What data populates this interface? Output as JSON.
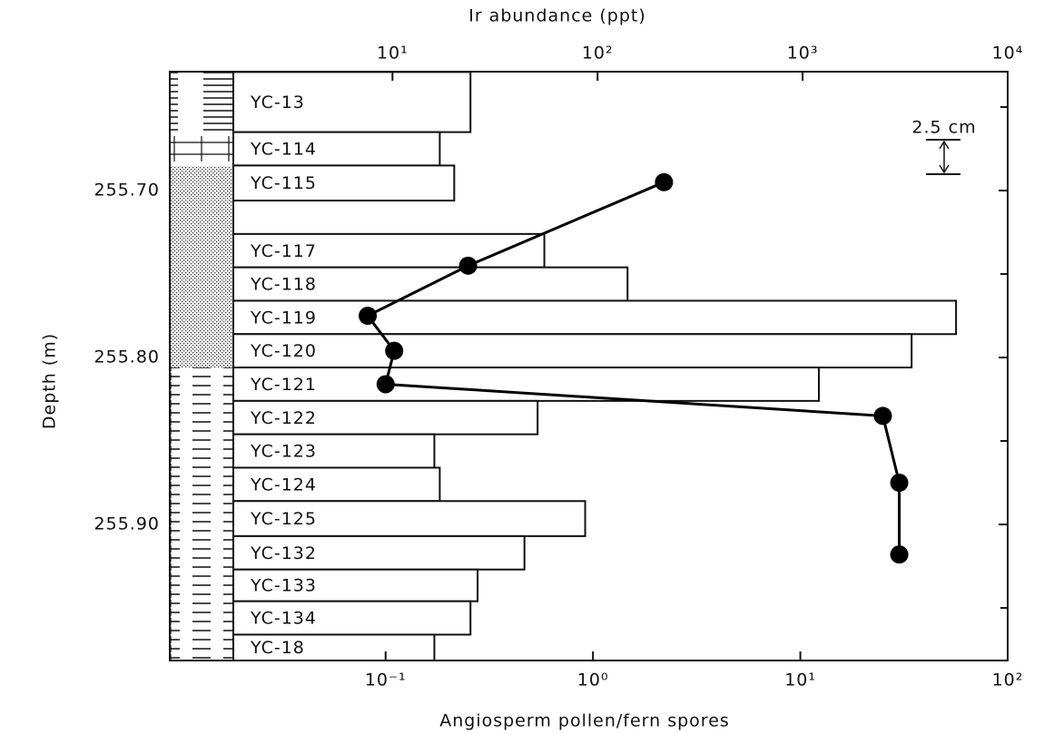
{
  "chart_data": {
    "type": "depth-profile",
    "top_axis_label": "Ir abundance (ppt)",
    "bottom_axis_label": "Angiosperm pollen/fern spores",
    "y_axis_label": "Depth (m)",
    "annotation": "2.5 cm",
    "xscale": "log",
    "xlim": [
      0.82,
      10000
    ],
    "xticks": [
      {
        "value": 10,
        "label": "10¹"
      },
      {
        "value": 100,
        "label": "10²"
      },
      {
        "value": 1000,
        "label": "10³"
      },
      {
        "value": 10000,
        "label": "10⁴"
      }
    ],
    "x2scale": "log",
    "x2lim": [
      0.0091,
      100
    ],
    "x2ticks": [
      {
        "value": 0.1,
        "label": "10⁻¹"
      },
      {
        "value": 1,
        "label": "10⁰"
      },
      {
        "value": 10,
        "label": "10¹"
      },
      {
        "value": 100,
        "label": "10²"
      }
    ],
    "ylim": [
      255.6288,
      255.9815
    ],
    "yticks": [
      {
        "value": 255.7,
        "label": "255.70"
      },
      {
        "value": 255.8,
        "label": "255.80"
      },
      {
        "value": 255.9,
        "label": "255.90"
      }
    ],
    "yminor_ticks": [
      255.65,
      255.75,
      255.85,
      255.95
    ],
    "categories": [
      "YC-13",
      "YC-114",
      "YC-115",
      "YC-117",
      "YC-118",
      "YC-119",
      "YC-120",
      "YC-121",
      "YC-122",
      "YC-123",
      "YC-124",
      "YC-125",
      "YC-132",
      "YC-133",
      "YC-134",
      "YC-18"
    ],
    "depth_top": [
      255.629,
      255.665,
      255.685,
      255.726,
      255.746,
      255.766,
      255.786,
      255.806,
      255.826,
      255.846,
      255.866,
      255.886,
      255.907,
      255.927,
      255.946,
      255.966
    ],
    "depth_bottom": [
      255.665,
      255.685,
      255.706,
      255.746,
      255.766,
      255.786,
      255.806,
      255.826,
      255.846,
      255.866,
      255.886,
      255.907,
      255.927,
      255.946,
      255.966,
      255.9815
    ],
    "values": [
      24,
      17,
      20,
      55,
      140,
      5600,
      3400,
      1200,
      51,
      16,
      17,
      87,
      44,
      26,
      24,
      16
    ],
    "bar_color": "#ffffff",
    "line": {
      "color": "#000000",
      "depth": [
        255.695,
        255.745,
        255.775,
        255.796,
        255.816,
        255.835,
        255.875,
        255.918
      ],
      "values": [
        2.2,
        0.25,
        0.082,
        0.11,
        0.1,
        25,
        30,
        30
      ]
    }
  }
}
